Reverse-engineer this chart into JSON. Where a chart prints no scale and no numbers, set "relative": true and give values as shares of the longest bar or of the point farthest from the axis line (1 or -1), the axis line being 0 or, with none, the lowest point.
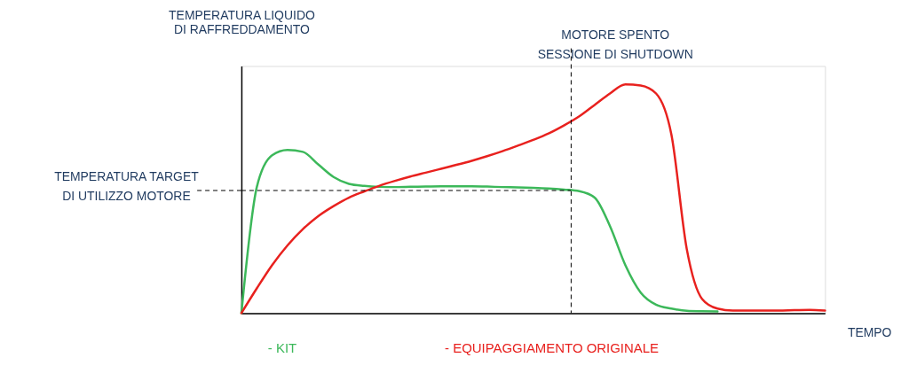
{
  "chart_data": {
    "type": "line",
    "relative": true,
    "xlabel": "TEMPO",
    "ylabel": "TEMPERATURA LIQUIDO\nDI RAFFREDDAMENTO",
    "grid": false,
    "line_style": "solid",
    "marker": "none",
    "categories": [
      null,
      null,
      null,
      null,
      null,
      null,
      null,
      null,
      null,
      null,
      null,
      null,
      null,
      null,
      null,
      null,
      null,
      null,
      null,
      null,
      null,
      null,
      null,
      null,
      null,
      null,
      null,
      null,
      null,
      null,
      null,
      null,
      null,
      null,
      null,
      null,
      null,
      null,
      null
    ],
    "series": [
      {
        "name": "- KIT",
        "color": "#3cb85a",
        "values": [
          0,
          0.55,
          0.69,
          0.713,
          0.705,
          0.65,
          0.595,
          0.565,
          0.556,
          0.552,
          0.551,
          0.552,
          0.553,
          0.554,
          0.554,
          0.554,
          0.553,
          0.551,
          0.55,
          0.548,
          0.545,
          0.54,
          0.533,
          0.505,
          0.38,
          0.21,
          0.09,
          0.037,
          0.02,
          0.01,
          0.008,
          0.007,
          null,
          null,
          null,
          null,
          null,
          null,
          null
        ]
      },
      {
        "name": "- EQUIPAGGIAMENTO ORIGINALE",
        "color": "#e8211e",
        "values": [
          0,
          0.108,
          0.21,
          0.296,
          0.367,
          0.424,
          0.468,
          0.505,
          0.532,
          0.557,
          0.578,
          0.597,
          0.614,
          0.631,
          0.648,
          0.666,
          0.686,
          0.708,
          0.732,
          0.757,
          0.785,
          0.82,
          0.86,
          0.91,
          0.96,
          1.0,
          0.995,
          0.96,
          0.78,
          0.28,
          0.062,
          0.02,
          0.011,
          0.011,
          0.011,
          0.011,
          0.013,
          0.014,
          0.011
        ]
      }
    ],
    "ref_lines": [
      {
        "axis": "y",
        "value": 0.536,
        "label": "TEMPERATURA TARGET\nDI UTILIZZO MOTORE",
        "line_style": "dashed"
      }
    ],
    "annotations": [
      "MOTORE SPENTO\nSESSIONE DI SHUTDOWN"
    ]
  }
}
